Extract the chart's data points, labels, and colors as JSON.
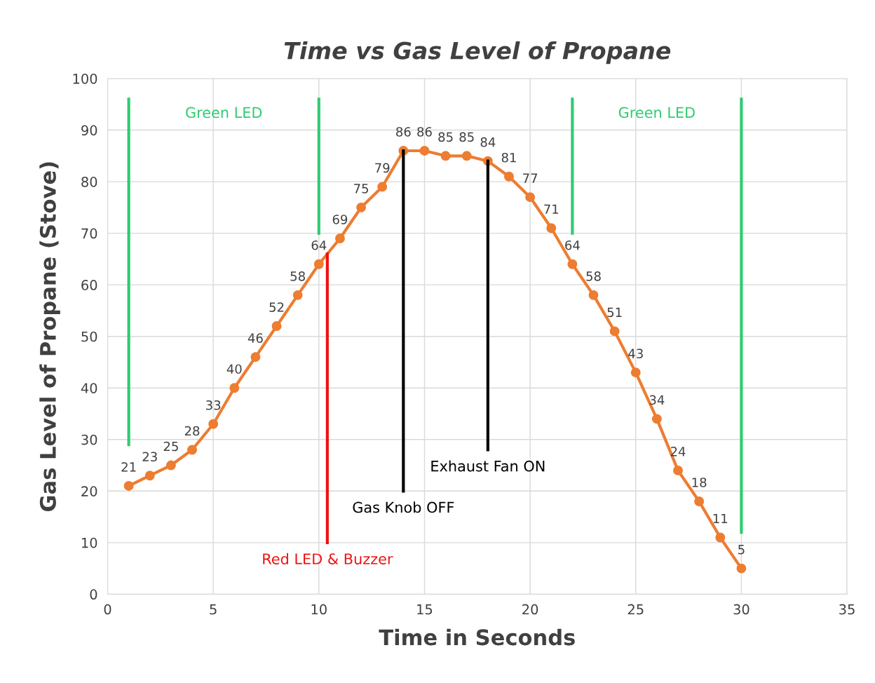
{
  "chart_data": {
    "type": "line",
    "title": "Time vs Gas Level of Propane",
    "xlabel": "Time in Seconds",
    "ylabel": "Gas Level of Propane (Stove)",
    "xlim": [
      0,
      35
    ],
    "xticks": [
      0,
      5,
      10,
      15,
      20,
      25,
      30,
      35
    ],
    "ylim": [
      0,
      100
    ],
    "yticks": [
      0,
      10,
      20,
      30,
      40,
      50,
      60,
      70,
      80,
      90,
      100
    ],
    "grid": true,
    "marker": "circle",
    "line_style": "solid",
    "series": [
      {
        "color": "#ed7d31",
        "data_labels": true,
        "x": [
          1,
          2,
          3,
          4,
          5,
          6,
          7,
          8,
          9,
          10,
          11,
          12,
          13,
          14,
          15,
          16,
          17,
          18,
          19,
          20,
          21,
          22,
          23,
          24,
          25,
          26,
          27,
          28,
          29,
          30
        ],
        "values": [
          21,
          23,
          25,
          28,
          33,
          40,
          46,
          52,
          58,
          64,
          69,
          75,
          79,
          86,
          86,
          85,
          85,
          84,
          81,
          77,
          71,
          64,
          58,
          51,
          43,
          34,
          24,
          18,
          11,
          5
        ]
      },
      {
        "color": "#2ecc71",
        "marker": "none",
        "x": [
          1,
          1
        ],
        "values": [
          29,
          96
        ]
      },
      {
        "color": "#2ecc71",
        "marker": "none",
        "x": [
          10,
          10
        ],
        "values": [
          70,
          96
        ]
      },
      {
        "color": "#2ecc71",
        "marker": "none",
        "x": [
          22,
          22
        ],
        "values": [
          70,
          96
        ]
      },
      {
        "color": "#2ecc71",
        "marker": "none",
        "x": [
          30,
          30
        ],
        "values": [
          12,
          96
        ]
      },
      {
        "color": "#ee1111",
        "marker": "none",
        "x": [
          10.4,
          10.4
        ],
        "values": [
          10,
          66
        ]
      },
      {
        "color": "#000000",
        "marker": "none",
        "x": [
          14,
          14
        ],
        "values": [
          20,
          86
        ]
      },
      {
        "color": "#000000",
        "marker": "none",
        "x": [
          18,
          18
        ],
        "values": [
          28,
          84
        ]
      }
    ],
    "annotations": [
      "Green LED",
      "Green LED",
      {
        "text": "Red LED & Buzzer",
        "x": 10.4,
        "y": 10
      },
      {
        "text": "Gas Knob OFF",
        "x": 14,
        "y": 20
      },
      {
        "text": "Exhaust Fan ON",
        "x": 18,
        "y": 28
      }
    ]
  }
}
